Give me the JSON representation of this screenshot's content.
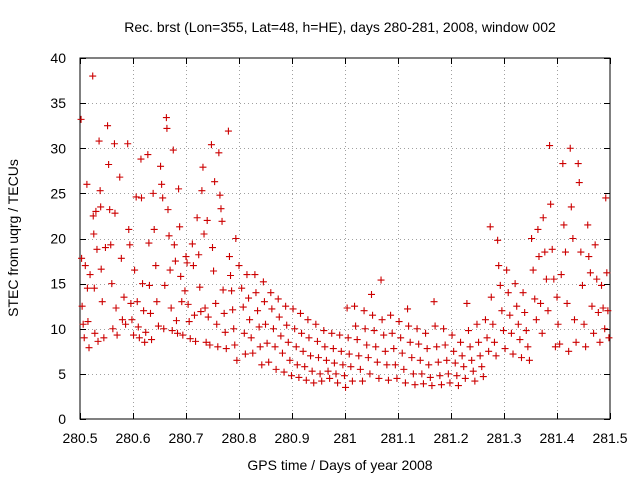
{
  "chart_data": {
    "type": "scatter",
    "title": "Rec. brst (Lon=355, Lat=48, h=HE), days 280-281, 2008, window 002",
    "xlabel": "GPS time / Days of year 2008",
    "ylabel": "STEC from uqrg / TECUs",
    "xlim": [
      280.5,
      281.5
    ],
    "ylim": [
      0,
      40
    ],
    "x_ticks": [
      280.5,
      280.6,
      280.7,
      280.8,
      280.9,
      281,
      281.1,
      281.2,
      281.3,
      281.4,
      281.5
    ],
    "x_tick_labels": [
      "280.5",
      "280.6",
      "280.7",
      "280.8",
      "280.9",
      "281",
      "281.1",
      "281.2",
      "281.3",
      "281.4",
      "281.5"
    ],
    "y_ticks": [
      0,
      5,
      10,
      15,
      20,
      25,
      30,
      35,
      40
    ],
    "y_tick_labels": [
      "0",
      "5",
      "10",
      "15",
      "20",
      "25",
      "30",
      "35",
      "40"
    ],
    "grid": true,
    "marker": "plus",
    "color": "#cc0000",
    "points": [
      [
        280.502,
        33.2
      ],
      [
        280.503,
        17.8
      ],
      [
        280.504,
        12.5
      ],
      [
        280.506,
        10.5
      ],
      [
        280.508,
        9.0
      ],
      [
        280.51,
        17.0
      ],
      [
        280.513,
        26.0
      ],
      [
        280.514,
        14.5
      ],
      [
        280.515,
        10.8
      ],
      [
        280.517,
        7.9
      ],
      [
        280.519,
        16.0
      ],
      [
        280.524,
        38.0
      ],
      [
        280.525,
        22.5
      ],
      [
        280.526,
        20.5
      ],
      [
        280.527,
        14.5
      ],
      [
        280.528,
        9.5
      ],
      [
        280.53,
        23.0
      ],
      [
        280.532,
        18.8
      ],
      [
        280.534,
        8.6
      ],
      [
        280.536,
        30.8
      ],
      [
        280.538,
        25.3
      ],
      [
        280.539,
        23.5
      ],
      [
        280.54,
        16.6
      ],
      [
        280.542,
        13.0
      ],
      [
        280.545,
        9.0
      ],
      [
        280.548,
        19.0
      ],
      [
        280.552,
        32.5
      ],
      [
        280.554,
        28.2
      ],
      [
        280.556,
        23.2
      ],
      [
        280.558,
        19.3
      ],
      [
        280.56,
        15.0
      ],
      [
        280.562,
        10.0
      ],
      [
        280.565,
        30.5
      ],
      [
        280.566,
        22.8
      ],
      [
        280.568,
        12.3
      ],
      [
        280.57,
        9.3
      ],
      [
        280.575,
        26.8
      ],
      [
        280.578,
        17.8
      ],
      [
        280.58,
        11.0
      ],
      [
        280.583,
        13.5
      ],
      [
        280.586,
        10.5
      ],
      [
        280.59,
        30.5
      ],
      [
        280.592,
        21.0
      ],
      [
        280.594,
        19.3
      ],
      [
        280.596,
        12.8
      ],
      [
        280.598,
        11.0
      ],
      [
        280.601,
        9.3
      ],
      [
        280.603,
        16.5
      ],
      [
        280.606,
        24.6
      ],
      [
        280.608,
        13.0
      ],
      [
        280.61,
        10.2
      ],
      [
        280.612,
        9.0
      ],
      [
        280.615,
        28.8
      ],
      [
        280.616,
        24.5
      ],
      [
        280.618,
        15.0
      ],
      [
        280.62,
        12.0
      ],
      [
        280.622,
        8.5
      ],
      [
        280.624,
        9.6
      ],
      [
        280.628,
        29.3
      ],
      [
        280.63,
        19.5
      ],
      [
        280.631,
        14.8
      ],
      [
        280.633,
        11.7
      ],
      [
        280.635,
        8.8
      ],
      [
        280.638,
        25.0
      ],
      [
        280.64,
        21.0
      ],
      [
        280.643,
        17.0
      ],
      [
        280.645,
        13.0
      ],
      [
        280.648,
        10.3
      ],
      [
        280.652,
        28.0
      ],
      [
        280.654,
        26.0
      ],
      [
        280.656,
        24.5
      ],
      [
        280.658,
        10.0
      ],
      [
        280.66,
        14.8
      ],
      [
        280.663,
        33.4
      ],
      [
        280.664,
        32.2
      ],
      [
        280.666,
        23.2
      ],
      [
        280.668,
        20.3
      ],
      [
        280.67,
        16.5
      ],
      [
        280.672,
        12.3
      ],
      [
        280.674,
        9.8
      ],
      [
        280.676,
        29.8
      ],
      [
        280.678,
        19.3
      ],
      [
        280.68,
        17.5
      ],
      [
        280.682,
        10.9
      ],
      [
        280.684,
        9.5
      ],
      [
        280.686,
        25.5
      ],
      [
        280.688,
        21.3
      ],
      [
        280.69,
        15.8
      ],
      [
        280.692,
        13.0
      ],
      [
        280.694,
        9.3
      ],
      [
        280.698,
        14.2
      ],
      [
        280.7,
        18.0
      ],
      [
        280.702,
        17.3
      ],
      [
        280.704,
        12.7
      ],
      [
        280.706,
        10.8
      ],
      [
        280.708,
        8.9
      ],
      [
        280.712,
        19.4
      ],
      [
        280.714,
        17.0
      ],
      [
        280.716,
        11.5
      ],
      [
        280.718,
        8.6
      ],
      [
        280.721,
        22.3
      ],
      [
        280.724,
        18.2
      ],
      [
        280.726,
        14.6
      ],
      [
        280.728,
        11.9
      ],
      [
        280.73,
        25.3
      ],
      [
        280.732,
        27.9
      ],
      [
        280.734,
        20.5
      ],
      [
        280.736,
        12.3
      ],
      [
        280.738,
        8.5
      ],
      [
        280.74,
        22.0
      ],
      [
        280.742,
        11.3
      ],
      [
        280.745,
        8.2
      ],
      [
        280.748,
        30.4
      ],
      [
        280.75,
        19.0
      ],
      [
        280.752,
        16.4
      ],
      [
        280.754,
        26.3
      ],
      [
        280.756,
        12.8
      ],
      [
        280.758,
        10.5
      ],
      [
        280.76,
        8.0
      ],
      [
        280.762,
        29.5
      ],
      [
        280.764,
        24.8
      ],
      [
        280.766,
        23.3
      ],
      [
        280.768,
        21.9
      ],
      [
        280.77,
        14.3
      ],
      [
        280.772,
        11.7
      ],
      [
        280.774,
        9.6
      ],
      [
        280.776,
        7.8
      ],
      [
        280.78,
        31.9
      ],
      [
        280.782,
        18.0
      ],
      [
        280.784,
        15.9
      ],
      [
        280.786,
        14.2
      ],
      [
        280.788,
        12.1
      ],
      [
        280.79,
        10.0
      ],
      [
        280.792,
        8.2
      ],
      [
        280.794,
        20.0
      ],
      [
        280.796,
        6.5
      ],
      [
        280.8,
        17.0
      ],
      [
        280.805,
        14.5
      ],
      [
        280.808,
        12.4
      ],
      [
        280.81,
        9.5
      ],
      [
        280.812,
        7.2
      ],
      [
        280.815,
        16.0
      ],
      [
        280.818,
        13.4
      ],
      [
        280.82,
        11.0
      ],
      [
        280.823,
        9.0
      ],
      [
        280.826,
        7.3
      ],
      [
        280.83,
        16.0
      ],
      [
        280.832,
        14.0
      ],
      [
        280.835,
        12.0
      ],
      [
        280.838,
        10.2
      ],
      [
        280.84,
        8.0
      ],
      [
        280.843,
        6.0
      ],
      [
        280.846,
        15.2
      ],
      [
        280.848,
        13.0
      ],
      [
        280.85,
        10.5
      ],
      [
        280.853,
        8.4
      ],
      [
        280.856,
        6.3
      ],
      [
        280.86,
        14.0
      ],
      [
        280.862,
        12.2
      ],
      [
        280.865,
        10.0
      ],
      [
        280.868,
        8.0
      ],
      [
        280.87,
        5.5
      ],
      [
        280.874,
        13.3
      ],
      [
        280.876,
        11.3
      ],
      [
        280.879,
        9.2
      ],
      [
        280.882,
        7.3
      ],
      [
        280.885,
        5.2
      ],
      [
        280.888,
        12.5
      ],
      [
        280.89,
        10.4
      ],
      [
        280.893,
        8.5
      ],
      [
        280.896,
        6.5
      ],
      [
        280.899,
        4.8
      ],
      [
        280.902,
        12.2
      ],
      [
        280.905,
        10.0
      ],
      [
        280.908,
        8.0
      ],
      [
        280.91,
        6.0
      ],
      [
        280.913,
        4.6
      ],
      [
        280.916,
        11.7
      ],
      [
        280.918,
        9.5
      ],
      [
        280.921,
        7.5
      ],
      [
        280.924,
        5.8
      ],
      [
        280.927,
        4.3
      ],
      [
        280.93,
        11.0
      ],
      [
        280.932,
        9.0
      ],
      [
        280.935,
        7.0
      ],
      [
        280.938,
        5.3
      ],
      [
        280.941,
        4.0
      ],
      [
        280.945,
        10.5
      ],
      [
        280.948,
        8.6
      ],
      [
        280.95,
        6.8
      ],
      [
        280.953,
        5.0
      ],
      [
        280.956,
        4.2
      ],
      [
        280.96,
        9.8
      ],
      [
        280.962,
        8.0
      ],
      [
        280.965,
        6.5
      ],
      [
        280.968,
        5.3
      ],
      [
        280.971,
        4.5
      ],
      [
        280.975,
        9.5
      ],
      [
        280.978,
        7.8
      ],
      [
        280.98,
        6.2
      ],
      [
        280.983,
        5.0
      ],
      [
        280.986,
        4.0
      ],
      [
        280.99,
        9.3
      ],
      [
        280.993,
        7.5
      ],
      [
        280.996,
        6.0
      ],
      [
        280.999,
        4.8
      ],
      [
        281.001,
        3.5
      ],
      [
        281.004,
        12.3
      ],
      [
        281.006,
        9.0
      ],
      [
        281.008,
        7.2
      ],
      [
        281.011,
        5.8
      ],
      [
        281.014,
        4.2
      ],
      [
        281.018,
        12.5
      ],
      [
        281.02,
        10.3
      ],
      [
        281.023,
        8.8
      ],
      [
        281.026,
        7.0
      ],
      [
        281.029,
        5.5
      ],
      [
        281.033,
        4.2
      ],
      [
        281.036,
        12.0
      ],
      [
        281.038,
        10.0
      ],
      [
        281.041,
        8.2
      ],
      [
        281.044,
        6.8
      ],
      [
        281.047,
        5.0
      ],
      [
        281.05,
        13.8
      ],
      [
        281.052,
        11.5
      ],
      [
        281.055,
        9.8
      ],
      [
        281.058,
        8.0
      ],
      [
        281.061,
        6.3
      ],
      [
        281.064,
        4.5
      ],
      [
        281.068,
        15.4
      ],
      [
        281.07,
        11.0
      ],
      [
        281.073,
        9.3
      ],
      [
        281.076,
        7.5
      ],
      [
        281.079,
        6.0
      ],
      [
        281.082,
        4.3
      ],
      [
        281.086,
        11.5
      ],
      [
        281.089,
        9.5
      ],
      [
        281.092,
        7.8
      ],
      [
        281.095,
        6.0
      ],
      [
        281.098,
        4.5
      ],
      [
        281.102,
        10.8
      ],
      [
        281.105,
        9.0
      ],
      [
        281.108,
        7.3
      ],
      [
        281.111,
        5.5
      ],
      [
        281.114,
        4.0
      ],
      [
        281.118,
        12.2
      ],
      [
        281.12,
        10.3
      ],
      [
        281.123,
        8.5
      ],
      [
        281.126,
        6.8
      ],
      [
        281.129,
        5.0
      ],
      [
        281.132,
        3.8
      ],
      [
        281.136,
        10.0
      ],
      [
        281.139,
        8.3
      ],
      [
        281.142,
        6.5
      ],
      [
        281.145,
        5.0
      ],
      [
        281.148,
        3.9
      ],
      [
        281.152,
        9.5
      ],
      [
        281.155,
        7.8
      ],
      [
        281.158,
        6.0
      ],
      [
        281.161,
        4.6
      ],
      [
        281.164,
        3.7
      ],
      [
        281.168,
        13.0
      ],
      [
        281.17,
        10.3
      ],
      [
        281.173,
        8.0
      ],
      [
        281.176,
        6.3
      ],
      [
        281.179,
        4.8
      ],
      [
        281.182,
        3.8
      ],
      [
        281.186,
        10.0
      ],
      [
        281.189,
        8.2
      ],
      [
        281.192,
        6.5
      ],
      [
        281.195,
        5.0
      ],
      [
        281.198,
        4.0
      ],
      [
        281.202,
        9.3
      ],
      [
        281.205,
        7.5
      ],
      [
        281.208,
        6.2
      ],
      [
        281.211,
        4.8
      ],
      [
        281.214,
        3.7
      ],
      [
        281.218,
        8.5
      ],
      [
        281.221,
        7.0
      ],
      [
        281.224,
        5.8
      ],
      [
        281.227,
        4.5
      ],
      [
        281.23,
        12.8
      ],
      [
        281.233,
        9.8
      ],
      [
        281.236,
        8.0
      ],
      [
        281.239,
        6.5
      ],
      [
        281.242,
        5.3
      ],
      [
        281.245,
        4.2
      ],
      [
        281.249,
        10.5
      ],
      [
        281.252,
        8.5
      ],
      [
        281.255,
        7.0
      ],
      [
        281.258,
        5.8
      ],
      [
        281.261,
        4.7
      ],
      [
        281.265,
        11.0
      ],
      [
        281.268,
        9.0
      ],
      [
        281.271,
        7.5
      ],
      [
        281.274,
        21.3
      ],
      [
        281.276,
        13.5
      ],
      [
        281.279,
        10.5
      ],
      [
        281.282,
        8.5
      ],
      [
        281.285,
        7.0
      ],
      [
        281.288,
        19.8
      ],
      [
        281.29,
        17.0
      ],
      [
        281.293,
        14.8
      ],
      [
        281.296,
        12.0
      ],
      [
        281.299,
        9.8
      ],
      [
        281.302,
        7.8
      ],
      [
        281.305,
        16.5
      ],
      [
        281.308,
        14.0
      ],
      [
        281.311,
        11.5
      ],
      [
        281.314,
        9.5
      ],
      [
        281.317,
        7.2
      ],
      [
        281.321,
        15.0
      ],
      [
        281.324,
        12.5
      ],
      [
        281.327,
        10.5
      ],
      [
        281.33,
        8.8
      ],
      [
        281.333,
        6.8
      ],
      [
        281.336,
        14.0
      ],
      [
        281.339,
        11.8
      ],
      [
        281.342,
        9.8
      ],
      [
        281.345,
        8.0
      ],
      [
        281.348,
        6.5
      ],
      [
        281.352,
        20.0
      ],
      [
        281.355,
        16.5
      ],
      [
        281.358,
        13.3
      ],
      [
        281.361,
        11.0
      ],
      [
        281.364,
        21.0
      ],
      [
        281.366,
        18.0
      ],
      [
        281.369,
        12.8
      ],
      [
        281.372,
        9.5
      ],
      [
        281.374,
        22.3
      ],
      [
        281.377,
        18.5
      ],
      [
        281.38,
        15.5
      ],
      [
        281.383,
        12.0
      ],
      [
        281.386,
        30.3
      ],
      [
        281.388,
        23.8
      ],
      [
        281.391,
        18.8
      ],
      [
        281.394,
        15.5
      ],
      [
        281.397,
        8.0
      ],
      [
        281.4,
        13.5
      ],
      [
        281.402,
        10.5
      ],
      [
        281.405,
        8.3
      ],
      [
        281.408,
        16.0
      ],
      [
        281.411,
        28.3
      ],
      [
        281.413,
        21.5
      ],
      [
        281.416,
        18.5
      ],
      [
        281.419,
        12.8
      ],
      [
        281.422,
        7.5
      ],
      [
        281.425,
        30.0
      ],
      [
        281.427,
        23.5
      ],
      [
        281.43,
        20.0
      ],
      [
        281.433,
        11.0
      ],
      [
        281.436,
        8.5
      ],
      [
        281.44,
        28.3
      ],
      [
        281.442,
        26.2
      ],
      [
        281.445,
        18.5
      ],
      [
        281.448,
        14.8
      ],
      [
        281.451,
        10.5
      ],
      [
        281.454,
        8.0
      ],
      [
        281.458,
        21.5
      ],
      [
        281.46,
        18.0
      ],
      [
        281.463,
        16.2
      ],
      [
        281.466,
        12.5
      ],
      [
        281.469,
        9.5
      ],
      [
        281.472,
        19.3
      ],
      [
        281.475,
        15.5
      ],
      [
        281.478,
        11.8
      ],
      [
        281.481,
        8.5
      ],
      [
        281.484,
        14.8
      ],
      [
        281.487,
        12.3
      ],
      [
        281.49,
        10.0
      ],
      [
        281.492,
        24.5
      ],
      [
        281.494,
        16.2
      ],
      [
        281.496,
        12.0
      ],
      [
        281.498,
        9.0
      ]
    ]
  }
}
